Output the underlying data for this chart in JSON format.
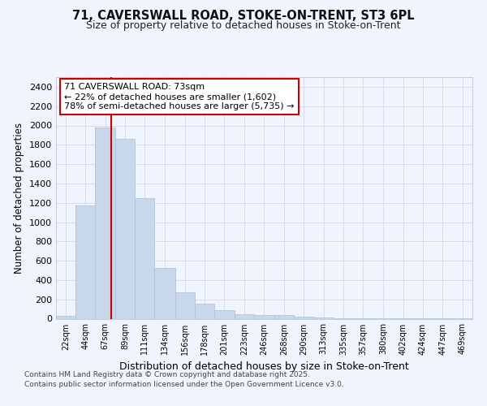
{
  "title1": "71, CAVERSWALL ROAD, STOKE-ON-TRENT, ST3 6PL",
  "title2": "Size of property relative to detached houses in Stoke-on-Trent",
  "xlabel": "Distribution of detached houses by size in Stoke-on-Trent",
  "ylabel": "Number of detached properties",
  "annotation_title": "71 CAVERSWALL ROAD: 73sqm",
  "annotation_line1": "← 22% of detached houses are smaller (1,602)",
  "annotation_line2": "78% of semi-detached houses are larger (5,735) →",
  "bar_color": "#c8d8ea",
  "bar_edge_color": "#a8c0d8",
  "vline_color": "#cc0000",
  "vline_x": 73,
  "annotation_box_color": "#ffffff",
  "annotation_box_edge": "#cc0000",
  "categories": [
    "22sqm",
    "44sqm",
    "67sqm",
    "89sqm",
    "111sqm",
    "134sqm",
    "156sqm",
    "178sqm",
    "201sqm",
    "223sqm",
    "246sqm",
    "268sqm",
    "290sqm",
    "313sqm",
    "335sqm",
    "357sqm",
    "380sqm",
    "402sqm",
    "424sqm",
    "447sqm",
    "469sqm"
  ],
  "bin_edges": [
    11,
    33,
    55,
    78,
    100,
    122,
    145,
    167,
    189,
    212,
    234,
    257,
    279,
    301,
    324,
    346,
    368,
    391,
    413,
    435,
    458,
    480
  ],
  "values": [
    30,
    1175,
    1975,
    1860,
    1250,
    525,
    275,
    155,
    90,
    50,
    42,
    38,
    20,
    10,
    5,
    4,
    3,
    2,
    1,
    1,
    1
  ],
  "ylim": [
    0,
    2500
  ],
  "yticks": [
    0,
    200,
    400,
    600,
    800,
    1000,
    1200,
    1400,
    1600,
    1800,
    2000,
    2200,
    2400
  ],
  "footer1": "Contains HM Land Registry data © Crown copyright and database right 2025.",
  "footer2": "Contains public sector information licensed under the Open Government Licence v3.0.",
  "background_color": "#f0f4ff",
  "grid_color": "#c8d4e8"
}
